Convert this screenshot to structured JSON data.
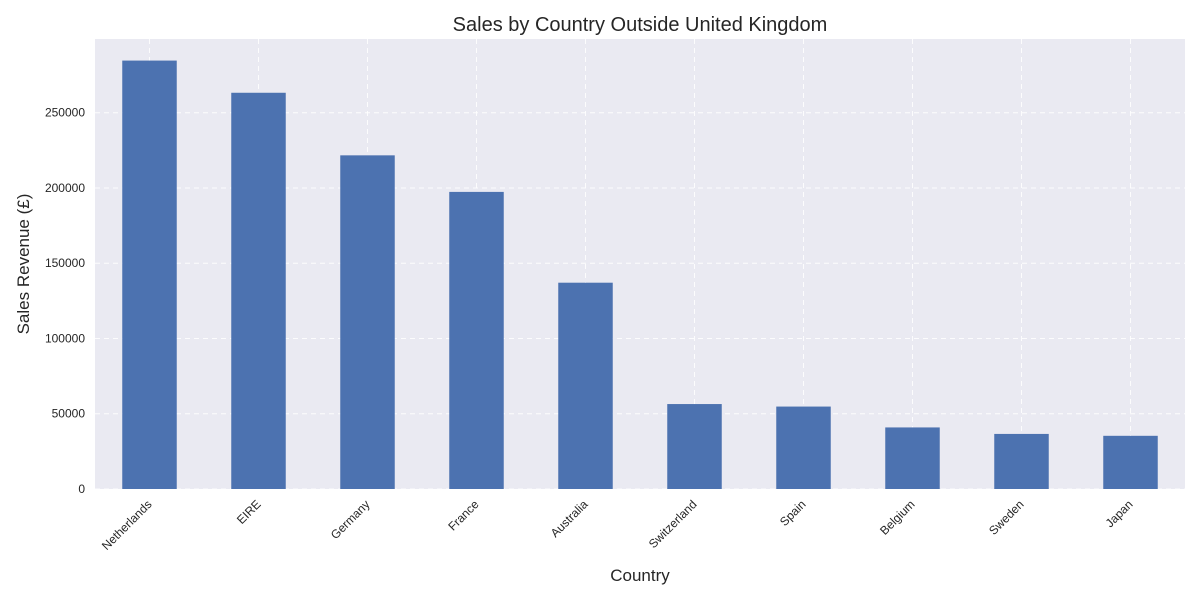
{
  "chart_data": {
    "type": "bar",
    "title": "Sales by Country Outside United Kingdom",
    "xlabel": "Country",
    "ylabel": "Sales Revenue (£)",
    "categories": [
      "Netherlands",
      "EIRE",
      "Germany",
      "France",
      "Australia",
      "Switzerland",
      "Spain",
      "Belgium",
      "Sweden",
      "Japan"
    ],
    "values": [
      284662,
      263277,
      221698,
      197404,
      137077,
      56444,
      54775,
      40911,
      36596,
      35341
    ],
    "ylim": [
      0,
      299000
    ],
    "yticks": [
      0,
      50000,
      100000,
      150000,
      200000,
      250000
    ],
    "grid": true,
    "colors": {
      "bar": "#4c72b0",
      "plot_background": "#eaeaf2",
      "grid": "#ffffff",
      "text": "#262626"
    }
  }
}
